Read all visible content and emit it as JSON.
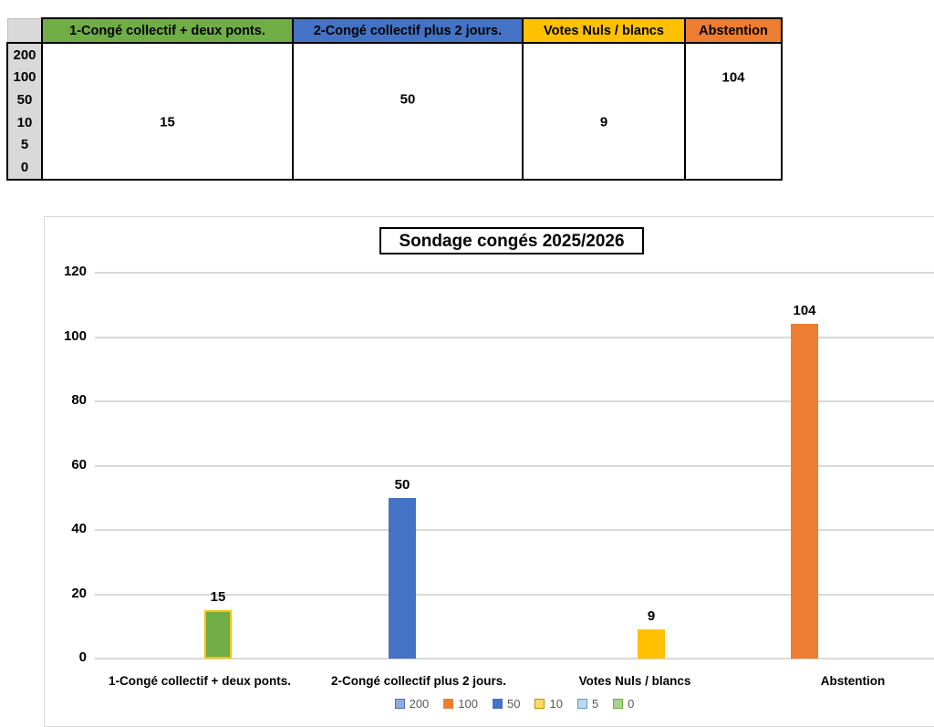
{
  "table": {
    "row_labels": [
      "200",
      "100",
      "50",
      "10",
      "5",
      "0"
    ],
    "columns": [
      {
        "header": "1-Congé collectif + deux ponts.",
        "header_bg": "#70AD47",
        "value": "15",
        "value_row": 3
      },
      {
        "header": "2-Congé collectif plus 2 jours.",
        "header_bg": "#4472C4",
        "value": "50",
        "value_row": 2
      },
      {
        "header": "Votes Nuls / blancs",
        "header_bg": "#FFC000",
        "value": "9",
        "value_row": 3
      },
      {
        "header": "Abstention",
        "header_bg": "#ED7D31",
        "value": "104",
        "value_row": 1
      }
    ]
  },
  "chart_data": {
    "type": "bar",
    "title": "Sondage congés 2025/2026",
    "categories": [
      "1-Congé collectif + deux ponts.",
      "2-Congé collectif plus 2 jours.",
      "Votes Nuls / blancs",
      "Abstention"
    ],
    "values": [
      15,
      50,
      9,
      104
    ],
    "value_labels": [
      "15",
      "50",
      "9",
      "104"
    ],
    "bar_colors": [
      "#70AD47",
      "#4472C4",
      "#FFC000",
      "#ED7D31"
    ],
    "bar_border_colors": [
      "#FFC000",
      "#4472C4",
      "#FFC000",
      "#ED7D31"
    ],
    "xlabel": "",
    "ylabel": "",
    "ylim": [
      0,
      120
    ],
    "yticks": [
      0,
      20,
      40,
      60,
      80,
      100,
      120
    ],
    "grid": true,
    "legend_position": "bottom",
    "legend": [
      {
        "label": "200",
        "fill": "#8FAADC",
        "border": "#4472C4"
      },
      {
        "label": "100",
        "fill": "#ED7D31",
        "border": "#ED7D31"
      },
      {
        "label": "50",
        "fill": "#4472C4",
        "border": "#4472C4"
      },
      {
        "label": "10",
        "fill": "#FFD966",
        "border": "#BF9000"
      },
      {
        "label": "5",
        "fill": "#BDD7EE",
        "border": "#5B9BD5"
      },
      {
        "label": "0",
        "fill": "#A9D18E",
        "border": "#70AD47"
      }
    ]
  }
}
